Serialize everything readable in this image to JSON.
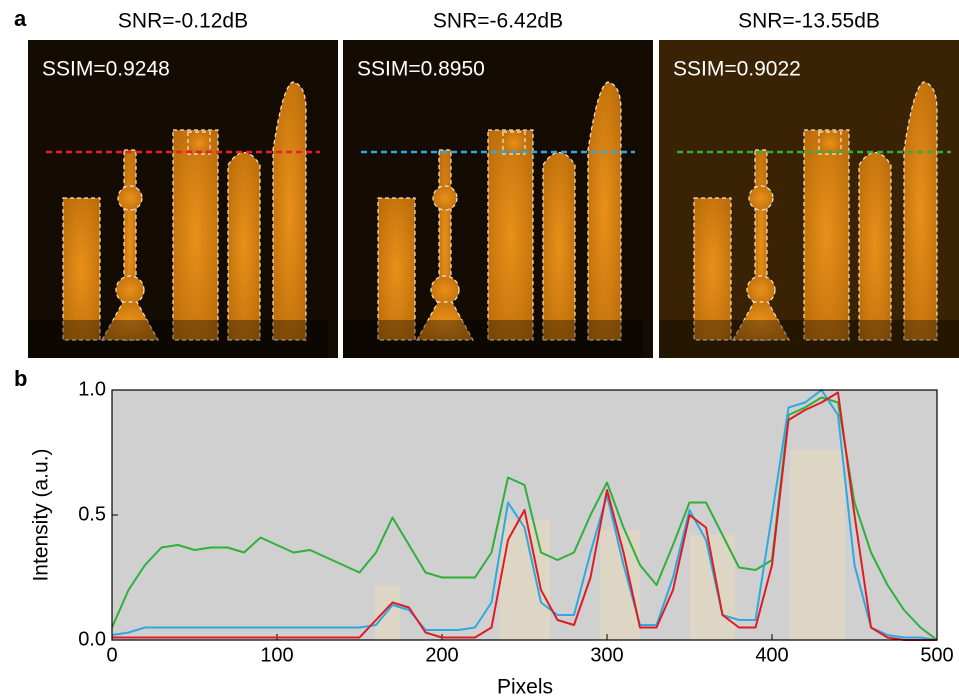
{
  "panel_a": {
    "label": "a",
    "images": [
      {
        "title": "SNR=-0.12dB",
        "ssim": "SSIM=0.9248",
        "line_color": "#e8202a"
      },
      {
        "title": "SNR=-6.42dB",
        "ssim": "SSIM=0.8950",
        "line_color": "#2fa8e0"
      },
      {
        "title": "SNR=-13.55dB",
        "ssim": "SSIM=0.9022",
        "line_color": "#2fb03a"
      }
    ]
  },
  "chart_data": {
    "type": "line",
    "label": "b",
    "xlabel": "Pixels",
    "ylabel": "Intensity (a.u.)",
    "x": [
      0,
      10,
      20,
      30,
      40,
      50,
      60,
      70,
      80,
      90,
      100,
      110,
      120,
      130,
      140,
      150,
      160,
      170,
      180,
      190,
      200,
      210,
      220,
      230,
      240,
      250,
      260,
      270,
      280,
      290,
      300,
      310,
      320,
      330,
      340,
      350,
      360,
      370,
      380,
      390,
      400,
      410,
      420,
      430,
      440,
      450,
      460,
      470,
      480,
      490,
      500
    ],
    "series": [
      {
        "color": "#2fb03a",
        "values": [
          0.05,
          0.2,
          0.3,
          0.37,
          0.38,
          0.36,
          0.37,
          0.37,
          0.35,
          0.41,
          0.38,
          0.35,
          0.36,
          0.33,
          0.3,
          0.27,
          0.35,
          0.49,
          0.38,
          0.27,
          0.25,
          0.25,
          0.25,
          0.35,
          0.65,
          0.62,
          0.35,
          0.32,
          0.35,
          0.5,
          0.63,
          0.45,
          0.3,
          0.22,
          0.38,
          0.55,
          0.55,
          0.42,
          0.29,
          0.28,
          0.32,
          0.9,
          0.93,
          0.97,
          0.95,
          0.55,
          0.35,
          0.22,
          0.12,
          0.05,
          0.0
        ]
      },
      {
        "color": "#2fa8e0",
        "values": [
          0.02,
          0.03,
          0.05,
          0.05,
          0.05,
          0.05,
          0.05,
          0.05,
          0.05,
          0.05,
          0.05,
          0.05,
          0.05,
          0.05,
          0.05,
          0.05,
          0.06,
          0.14,
          0.12,
          0.04,
          0.04,
          0.04,
          0.05,
          0.15,
          0.55,
          0.45,
          0.15,
          0.1,
          0.1,
          0.35,
          0.58,
          0.3,
          0.06,
          0.06,
          0.25,
          0.52,
          0.4,
          0.1,
          0.08,
          0.08,
          0.5,
          0.93,
          0.95,
          1.0,
          0.9,
          0.3,
          0.05,
          0.02,
          0.01,
          0.01,
          0.0
        ]
      },
      {
        "color": "#e01b22",
        "values": [
          0.01,
          0.01,
          0.01,
          0.01,
          0.01,
          0.01,
          0.01,
          0.01,
          0.01,
          0.01,
          0.01,
          0.01,
          0.01,
          0.01,
          0.01,
          0.01,
          0.08,
          0.15,
          0.13,
          0.03,
          0.01,
          0.01,
          0.01,
          0.05,
          0.4,
          0.52,
          0.2,
          0.08,
          0.06,
          0.25,
          0.6,
          0.35,
          0.05,
          0.05,
          0.2,
          0.5,
          0.45,
          0.1,
          0.05,
          0.05,
          0.3,
          0.88,
          0.92,
          0.95,
          0.99,
          0.5,
          0.05,
          0.01,
          0.0,
          0.0,
          0.0
        ]
      }
    ],
    "xlim": [
      0,
      500
    ],
    "xticks": [
      0,
      100,
      200,
      300,
      400,
      500
    ],
    "ylim": [
      0,
      1
    ],
    "yticks": [
      {
        "value": 0,
        "label": "0.0"
      },
      0.5,
      {
        "value": 1,
        "label": "1.0"
      }
    ]
  }
}
